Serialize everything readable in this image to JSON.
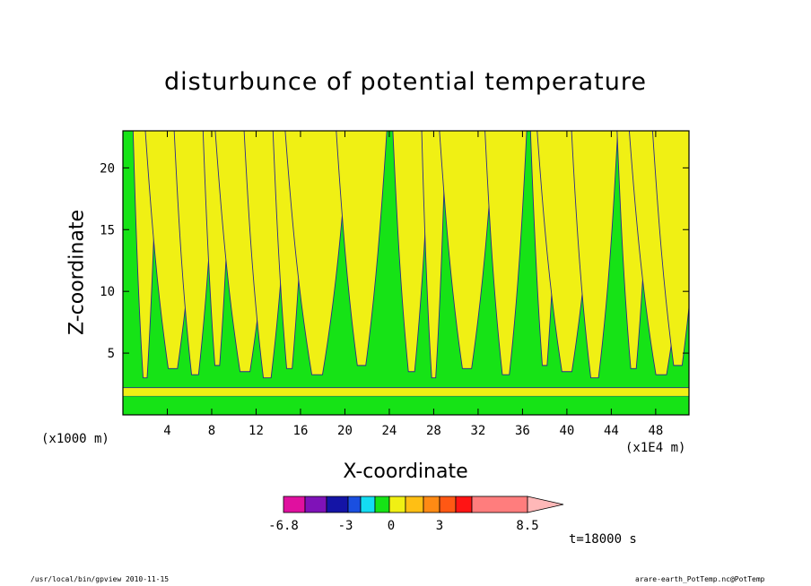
{
  "chart_data": {
    "type": "heatmap",
    "title": "disturbunce of potential temperature",
    "xlabel": "X-coordinate",
    "ylabel": "Z-coordinate",
    "x_unit": "(x1E4 m)",
    "y_unit": "(x1000 m)",
    "xlim": [
      0,
      51
    ],
    "ylim": [
      0,
      23
    ],
    "x_ticks": [
      4,
      8,
      12,
      16,
      20,
      24,
      28,
      32,
      36,
      40,
      44,
      48
    ],
    "y_ticks": [
      5,
      10,
      15,
      20
    ],
    "colorbar": {
      "labels": [
        "-6.8",
        "-3",
        "0",
        "3",
        "8.5"
      ],
      "colors": [
        "#e0109f",
        "#7f12b8",
        "#1414a6",
        "#1a4fe0",
        "#14dcf2",
        "#16e316",
        "#f0f014",
        "#ffbf14",
        "#ff8a14",
        "#ff5814",
        "#ff1414",
        "#ff7d7d",
        "#ffb8b8"
      ]
    },
    "field_colors": {
      "negative_small": "#16e316",
      "positive_small": "#f0f014",
      "contour": "#2a2a8c"
    },
    "time_label": "t=18000 s"
  },
  "footer": {
    "left": "/usr/local/bin/gpview   2010-11-15",
    "right": "arare-earth_PotTemp.nc@PotTemp"
  }
}
